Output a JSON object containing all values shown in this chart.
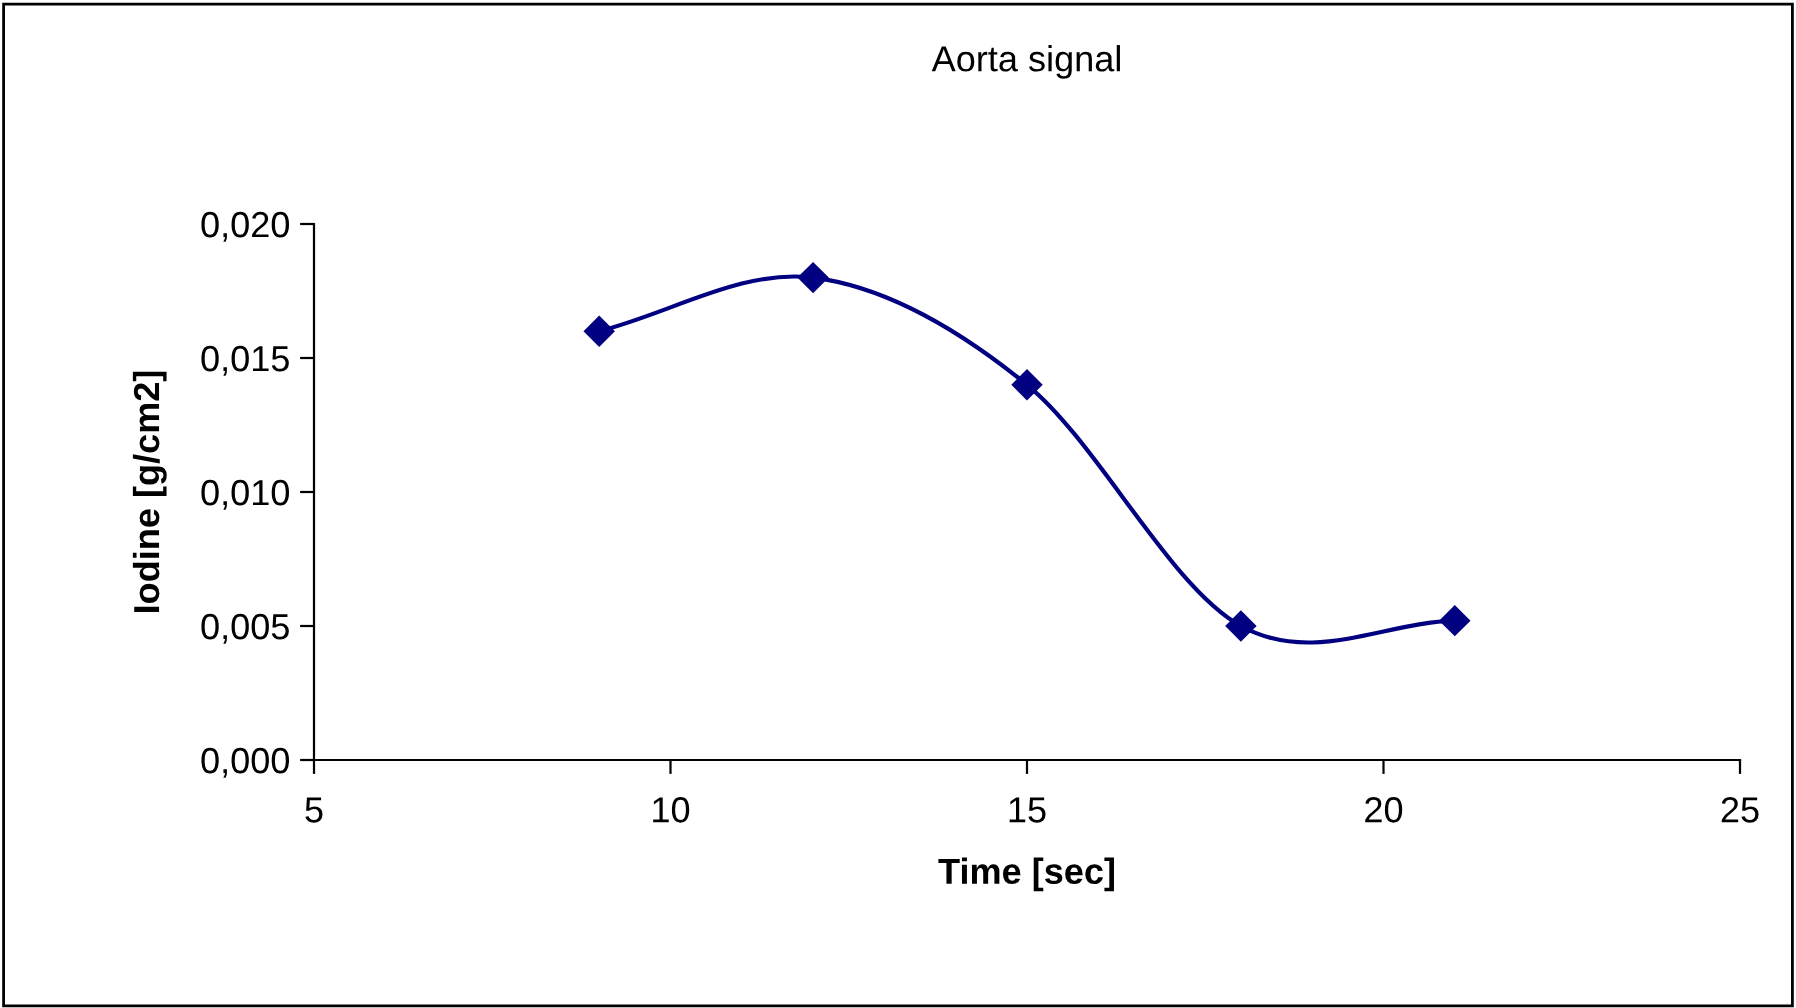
{
  "chart_data": {
    "type": "line",
    "title": "Aorta signal",
    "xlabel": "Time [sec]",
    "ylabel": "Iodine [g/cm2]",
    "x": [
      9,
      12,
      15,
      18,
      21
    ],
    "series": [
      {
        "color": "#000080",
        "values": [
          0.016,
          0.018,
          0.014,
          0.005,
          0.0052
        ]
      }
    ],
    "xlim": [
      5,
      25
    ],
    "xticks": [
      5,
      10,
      15,
      20,
      25
    ],
    "ylim": [
      0,
      0.02
    ],
    "yticks": [
      {
        "value": 0,
        "label": "0,000"
      },
      {
        "value": 0.005,
        "label": "0,005"
      },
      {
        "value": 0.01,
        "label": "0,010"
      },
      {
        "value": 0.015,
        "label": "0,015"
      },
      {
        "value": 0.02,
        "label": "0,020"
      }
    ],
    "marker": "diamond",
    "line_style": "solid",
    "grid": false,
    "legend": false
  }
}
